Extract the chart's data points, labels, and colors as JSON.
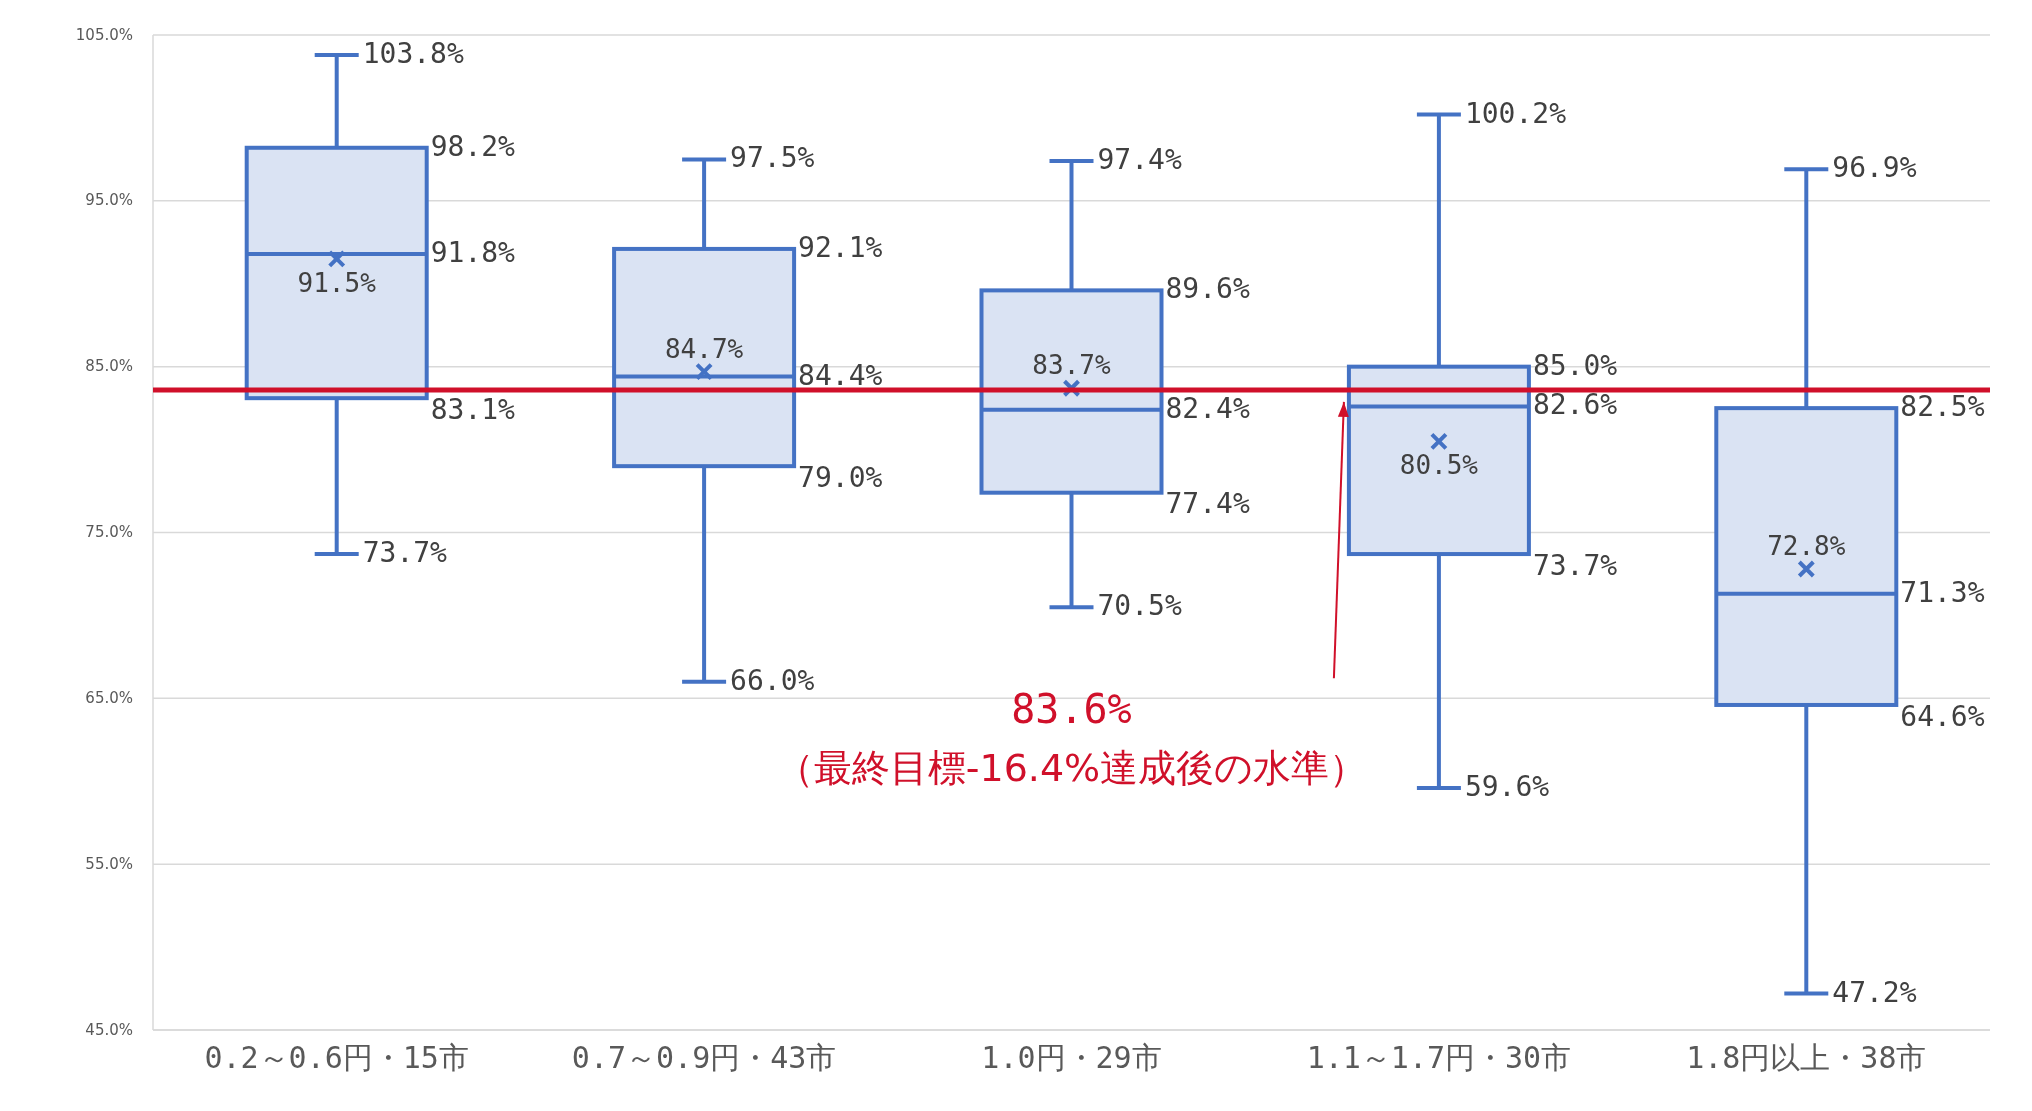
{
  "chart_data": {
    "type": "box",
    "categories": [
      "0.2～0.6円・15市",
      "0.7～0.9円・43市",
      "1.0円・29市",
      "1.1～1.7円・30市",
      "1.8円以上・38市"
    ],
    "boxes": [
      {
        "low": 73.7,
        "q1": 83.1,
        "median": 91.8,
        "q3": 98.2,
        "high": 103.8,
        "mean": 91.5
      },
      {
        "low": 66.0,
        "q1": 79.0,
        "median": 84.4,
        "q3": 92.1,
        "high": 97.5,
        "mean": 84.7
      },
      {
        "low": 70.5,
        "q1": 77.4,
        "median": 82.4,
        "q3": 89.6,
        "high": 97.4,
        "mean": 83.7
      },
      {
        "low": 59.6,
        "q1": 73.7,
        "median": 82.6,
        "q3": 85.0,
        "high": 100.2,
        "mean": 80.5
      },
      {
        "low": 47.2,
        "q1": 64.6,
        "median": 71.3,
        "q3": 82.5,
        "high": 96.9,
        "mean": 72.8
      }
    ],
    "value_labels": [
      {
        "low": "73.7%",
        "q1": "83.1%",
        "median": "91.8%",
        "q3": "98.2%",
        "high": "103.8%",
        "mean": "91.5%"
      },
      {
        "low": "66.0%",
        "q1": "79.0%",
        "median": "84.4%",
        "q3": "92.1%",
        "high": "97.5%",
        "mean": "84.7%"
      },
      {
        "low": "70.5%",
        "q1": "77.4%",
        "median": "82.4%",
        "q3": "89.6%",
        "high": "97.4%",
        "mean": "83.7%"
      },
      {
        "low": "59.6%",
        "q1": "73.7%",
        "median": "82.6%",
        "q3": "85.0%",
        "high": "100.2%",
        "mean": "80.5%"
      },
      {
        "low": "47.2%",
        "q1": "64.6%",
        "median": "71.3%",
        "q3": "82.5%",
        "high": "96.9%",
        "mean": "72.8%"
      }
    ],
    "color": "#4472c4",
    "ylim": [
      45,
      105
    ],
    "yticks": [
      {
        "value": 45,
        "label": "45.0%"
      },
      {
        "value": 55,
        "label": "55.0%"
      },
      {
        "value": 65,
        "label": "65.0%"
      },
      {
        "value": 75,
        "label": "75.0%"
      },
      {
        "value": 85,
        "label": "85.0%"
      },
      {
        "value": 95,
        "label": "95.0%"
      },
      {
        "value": 105,
        "label": "105.0%"
      }
    ],
    "grid": "y",
    "marker": "cross",
    "ref_lines": [
      {
        "axis": "y",
        "value": 83.6,
        "label": "83.6%",
        "color": "#d0102a"
      }
    ],
    "annotations": [
      "（最終目標-16.4%達成後の水準）"
    ]
  }
}
